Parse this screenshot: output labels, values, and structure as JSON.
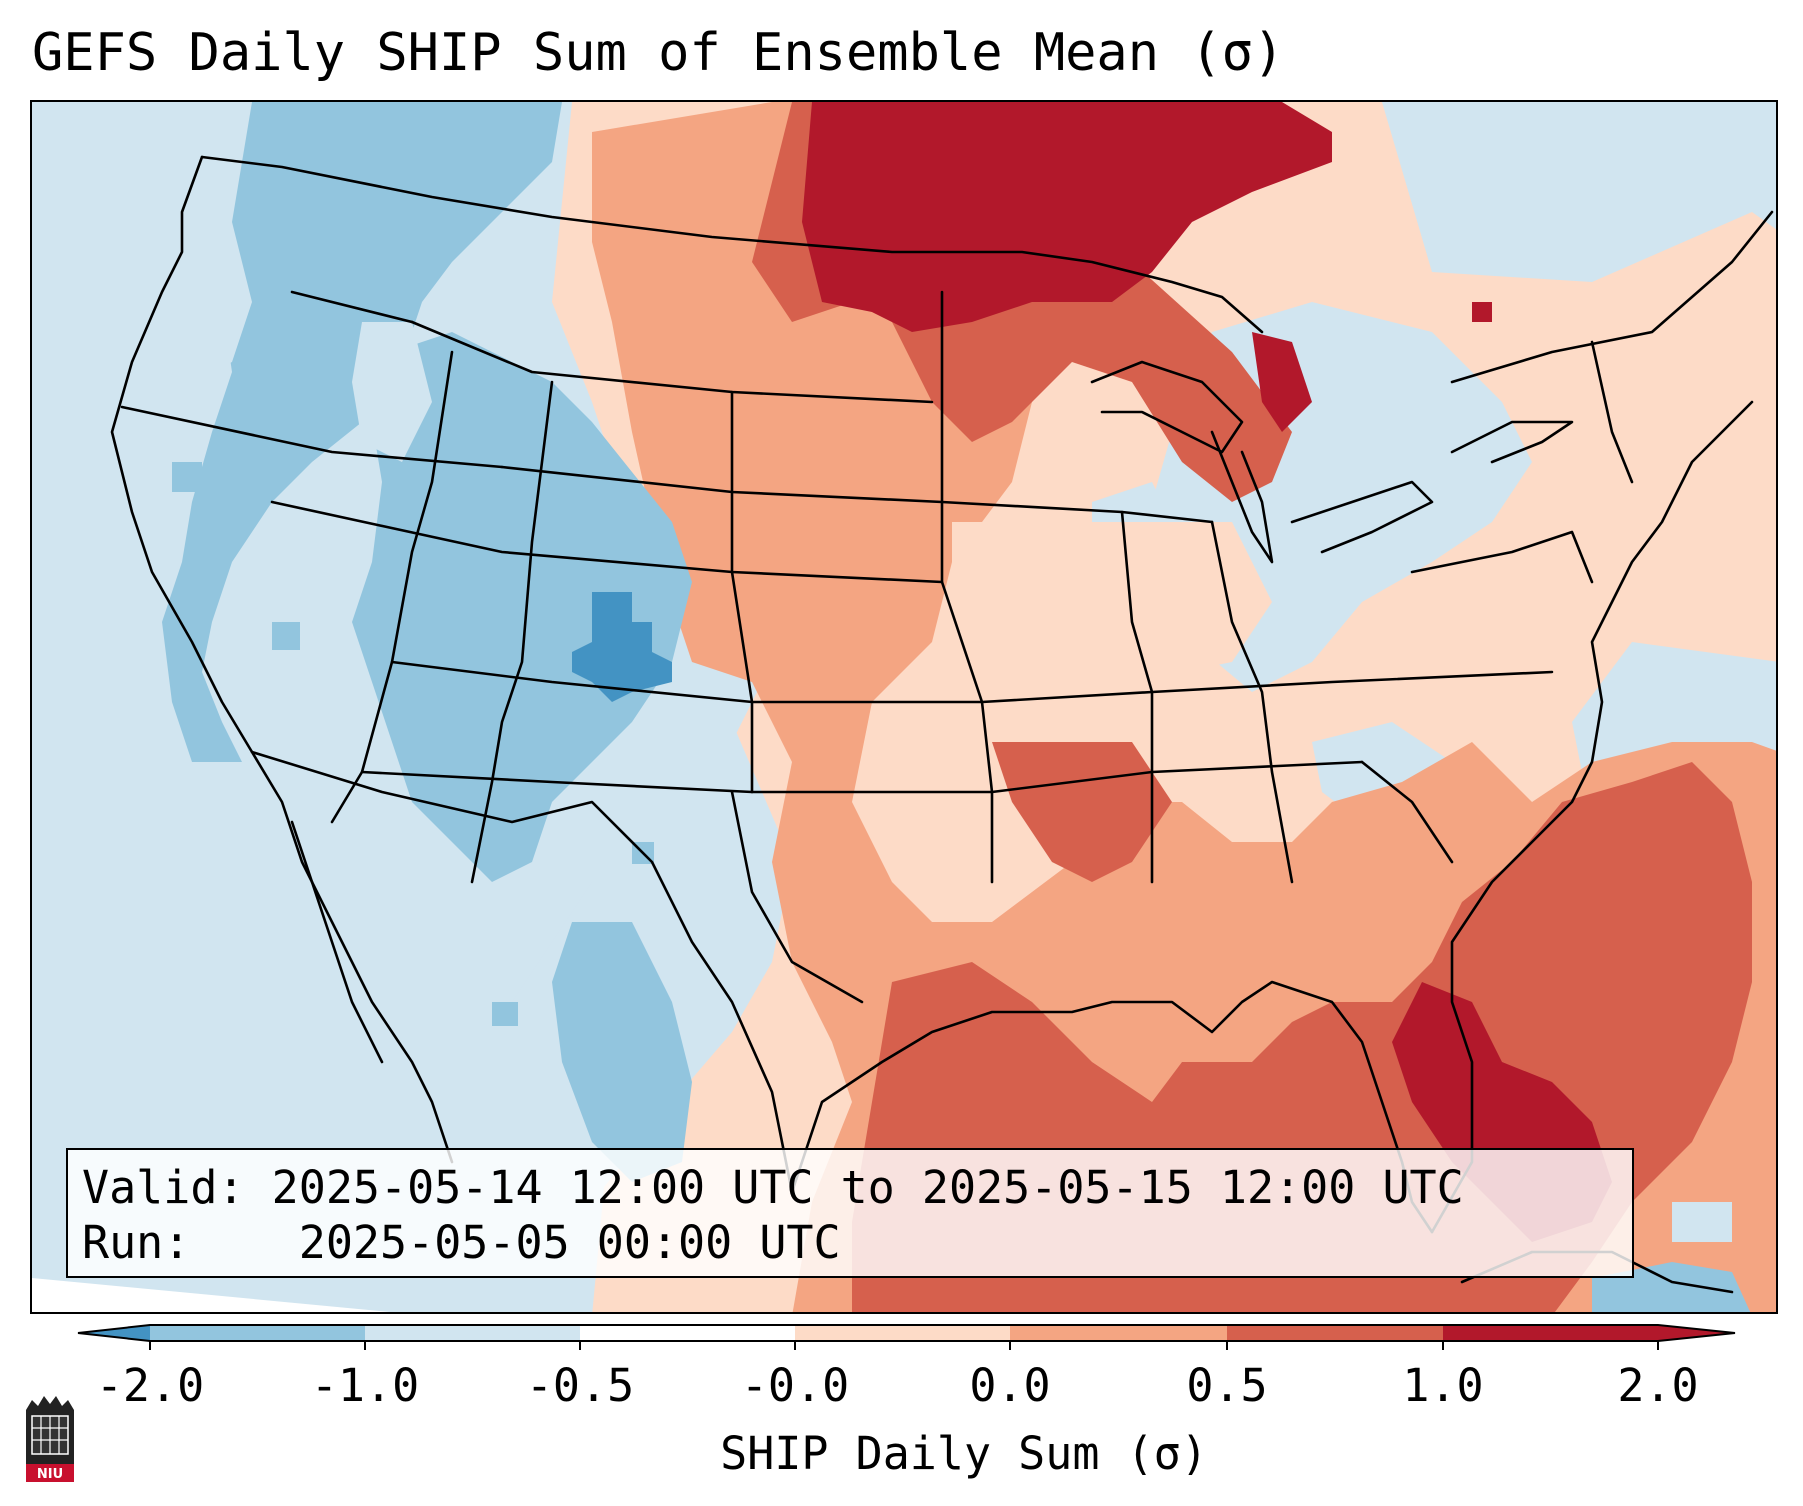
{
  "title": "GEFS Daily SHIP Sum of Ensemble Mean (σ)",
  "info": {
    "valid_label": "Valid:",
    "valid_value": "2025-05-14 12:00 UTC to 2025-05-15 12:00 UTC",
    "run_label": "Run:",
    "run_value": "2025-05-05 00:00 UTC"
  },
  "colorbar": {
    "label": "SHIP Daily Sum (σ)",
    "ticks": [
      "-2.0",
      "-1.0",
      "-0.5",
      "-0.0",
      "0.0",
      "0.5",
      "1.0",
      "2.0"
    ],
    "colors": [
      "#4393c3",
      "#92c5de",
      "#d1e5f0",
      "#ffffff",
      "#fddbc7",
      "#f4a582",
      "#d6604d",
      "#b2182b"
    ],
    "extend": "both"
  },
  "map": {
    "region": "Contiguous United States",
    "ocean_color": "#d1e5f0",
    "state_lines": "black"
  },
  "logo": {
    "name": "niu-logo",
    "text": "NIU"
  }
}
